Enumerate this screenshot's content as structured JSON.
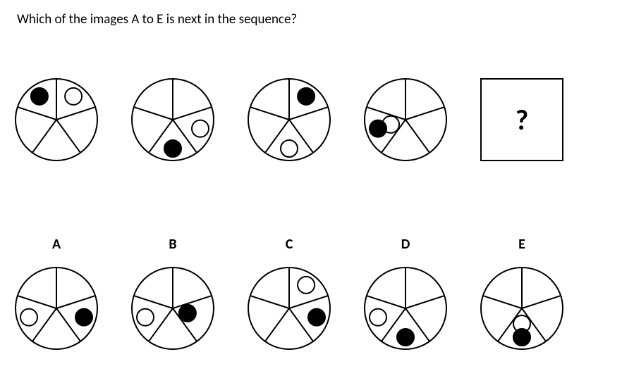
{
  "question_text": "Which of the images A to E is next in the sequence?",
  "placeholder_symbol": "?",
  "option_labels": [
    "A",
    "B",
    "C",
    "D",
    "E"
  ],
  "pie": {
    "radius": 58,
    "stroke": "#000000",
    "stroke_width": 2,
    "fill": "#ffffff",
    "n_sectors": 5,
    "angle_offset_deg": 90,
    "ball_radius": 12,
    "ball_r_inner": 22,
    "ball_r_outer": 41
  },
  "sequence": [
    {
      "black": {
        "sector": 0,
        "pos": "outer"
      },
      "white": {
        "sector": 4,
        "pos": "outer"
      }
    },
    {
      "black": {
        "sector": 2,
        "pos": "outer"
      },
      "white": {
        "sector": 3,
        "pos": "outer"
      }
    },
    {
      "black": {
        "sector": 4,
        "pos": "outer"
      },
      "white": {
        "sector": 2,
        "pos": "outer"
      }
    },
    {
      "black": {
        "sector": 1,
        "pos": "outer"
      },
      "white": {
        "sector": 1,
        "pos": "inner"
      }
    }
  ],
  "options": [
    {
      "label": "A",
      "black": {
        "sector": 3,
        "pos": "outer"
      },
      "white": {
        "sector": 1,
        "pos": "outer"
      }
    },
    {
      "label": "B",
      "black": {
        "sector": 3,
        "pos": "inner"
      },
      "white": {
        "sector": 1,
        "pos": "outer"
      }
    },
    {
      "label": "C",
      "black": {
        "sector": 3,
        "pos": "outer"
      },
      "white": {
        "sector": 4,
        "pos": "outer"
      }
    },
    {
      "label": "D",
      "black": {
        "sector": 2,
        "pos": "outer"
      },
      "white": {
        "sector": 1,
        "pos": "outer"
      }
    },
    {
      "label": "E",
      "black": {
        "sector": 2,
        "pos": "outer"
      },
      "white": {
        "sector": 2,
        "pos": "inner"
      }
    }
  ]
}
